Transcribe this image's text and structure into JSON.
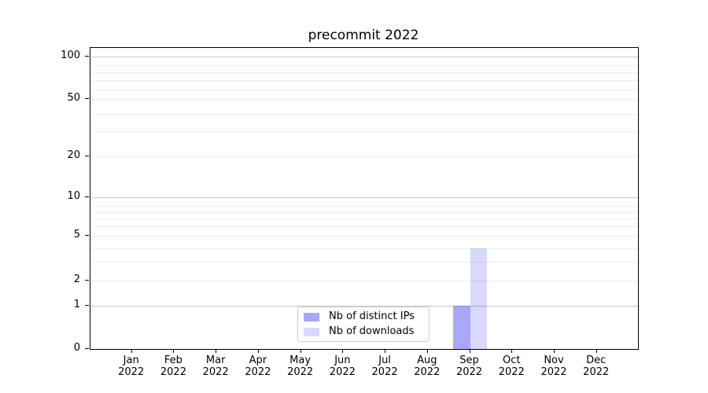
{
  "chart_data": {
    "type": "bar",
    "title": "precommit 2022",
    "categories": [
      "Jan",
      "Feb",
      "Mar",
      "Apr",
      "May",
      "Jun",
      "Jul",
      "Aug",
      "Sep",
      "Oct",
      "Nov",
      "Dec"
    ],
    "category_year": "2022",
    "series": [
      {
        "name": "Nb of distinct IPs",
        "color": "rgba(0,0,240,0.34)",
        "values": [
          0,
          0,
          0,
          0,
          0,
          0,
          0,
          0,
          1,
          0,
          0,
          0
        ]
      },
      {
        "name": "Nb of downloads",
        "color": "rgba(0,0,240,0.15)",
        "values": [
          0,
          0,
          0,
          0,
          0,
          0,
          0,
          0,
          4,
          0,
          0,
          0
        ]
      }
    ],
    "yscale": "quasi-log",
    "ylim": [
      0,
      100
    ],
    "ytick_values": [
      0,
      1,
      2,
      5,
      10,
      20,
      50,
      100
    ],
    "ytick_labels": [
      "0",
      "1",
      "2",
      "5",
      "10",
      "20",
      "50",
      "100"
    ],
    "major_grid_values": [
      1,
      10,
      100
    ],
    "minor_grid_values": [
      2,
      3,
      4,
      5,
      6,
      7,
      8,
      9,
      20,
      30,
      40,
      50,
      60,
      70,
      80,
      90
    ],
    "grid": true,
    "legend_position": "lower center",
    "colors": {
      "major_grid": "#c8c8c8",
      "minor_grid": "#ececec",
      "axis": "#000000",
      "background": "#ffffff"
    }
  }
}
